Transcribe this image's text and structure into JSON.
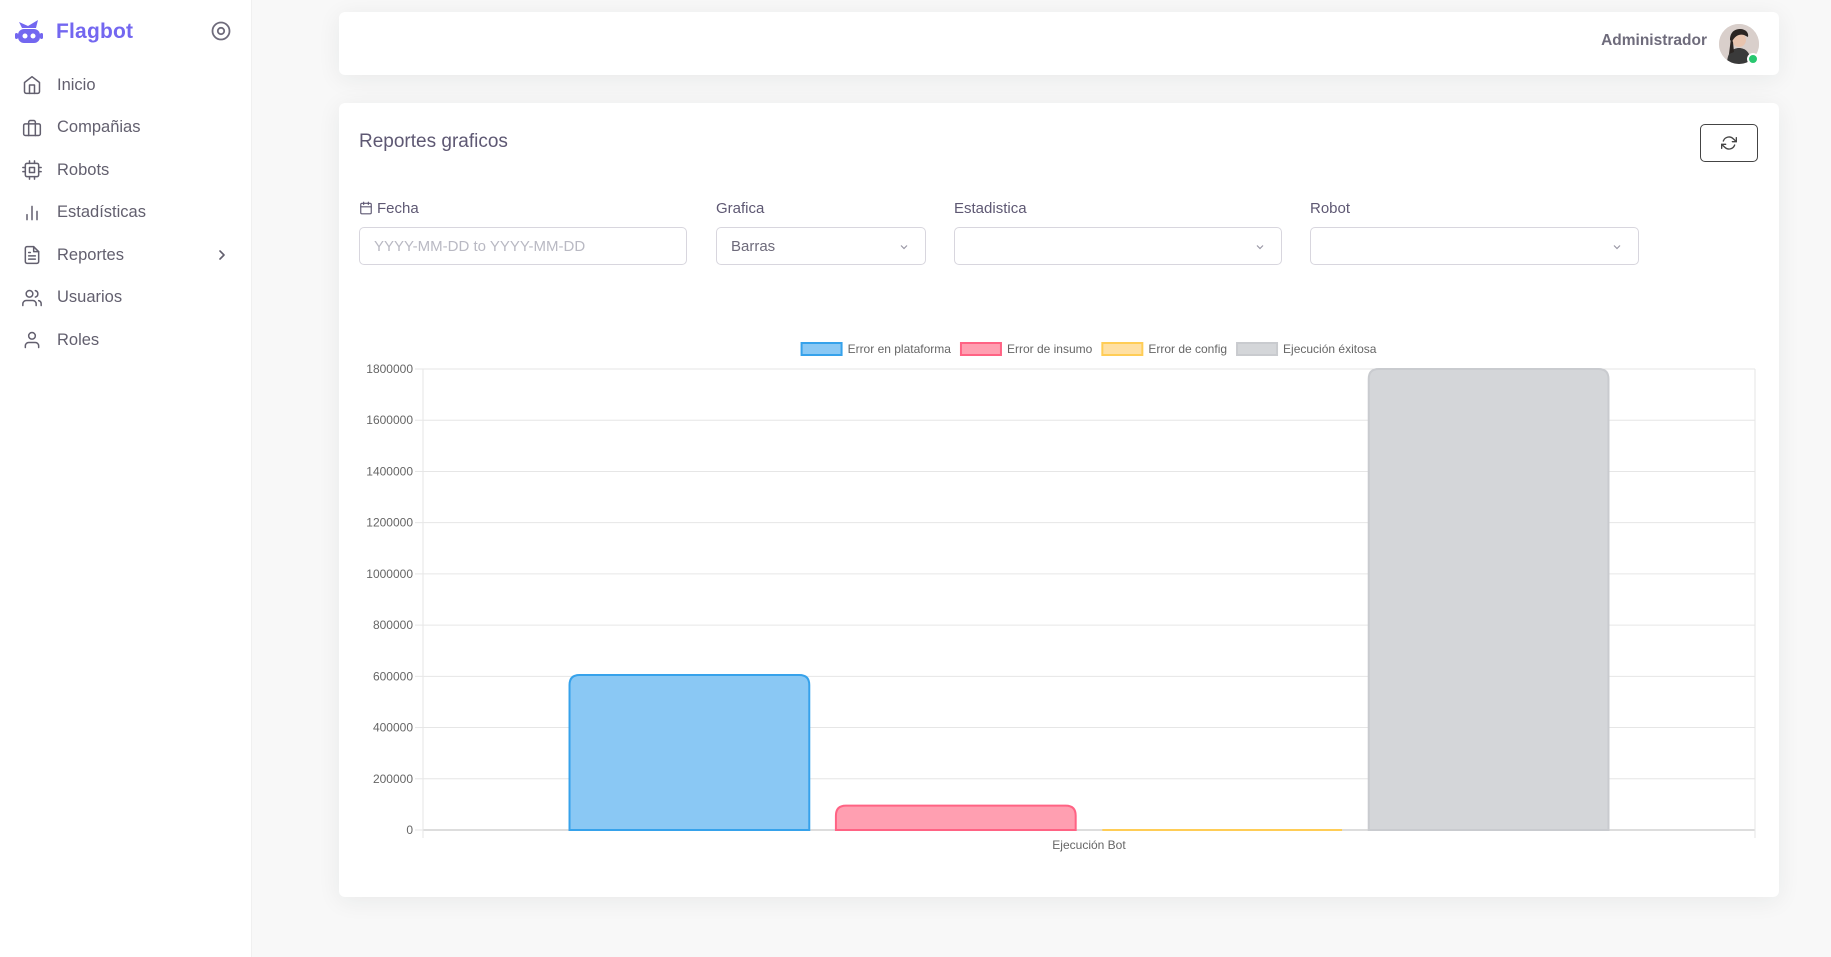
{
  "app": {
    "brand": "Flagbot"
  },
  "sidebar": {
    "items": [
      {
        "label": "Inicio",
        "icon": "home-icon"
      },
      {
        "label": "Compañias",
        "icon": "briefcase-icon"
      },
      {
        "label": "Robots",
        "icon": "cpu-icon"
      },
      {
        "label": "Estadísticas",
        "icon": "bar-chart-icon"
      },
      {
        "label": "Reportes",
        "icon": "file-text-icon",
        "has_submenu": true
      },
      {
        "label": "Usuarios",
        "icon": "users-icon"
      },
      {
        "label": "Roles",
        "icon": "user-icon"
      }
    ]
  },
  "header": {
    "user_name": "Administrador",
    "status": "online"
  },
  "report": {
    "title": "Reportes graficos",
    "filters": {
      "fecha": {
        "label": "Fecha",
        "placeholder": "YYYY-MM-DD to YYYY-MM-DD",
        "value": ""
      },
      "grafica": {
        "label": "Grafica",
        "value": "Barras"
      },
      "estadistica": {
        "label": "Estadistica",
        "value": ""
      },
      "robot": {
        "label": "Robot",
        "value": ""
      }
    }
  },
  "colors": {
    "accent": "#7367f0",
    "online": "#28c76f"
  },
  "chart_data": {
    "type": "bar",
    "categories": [
      "Ejecución Bot"
    ],
    "series": [
      {
        "name": "Error en plataforma",
        "values": [
          605000
        ],
        "color": "#8ac8f4",
        "border": "#36a2eb"
      },
      {
        "name": "Error de insumo",
        "values": [
          95000
        ],
        "color": "#ff9fb1",
        "border": "#ff6384"
      },
      {
        "name": "Error de config",
        "values": [
          0
        ],
        "color": "#ffe0a3",
        "border": "#ffcd56"
      },
      {
        "name": "Ejecución éxitosa",
        "values": [
          1800000
        ],
        "color": "#d4d6d9",
        "border": "#c9cbcf"
      }
    ],
    "yticks": [
      "0",
      "200000",
      "400000",
      "600000",
      "800000",
      "1000000",
      "1200000",
      "1400000",
      "1600000",
      "1800000"
    ],
    "ylim": [
      0,
      1800000
    ],
    "xlabel": "",
    "ylabel": "",
    "grid": true,
    "legend": "top"
  }
}
